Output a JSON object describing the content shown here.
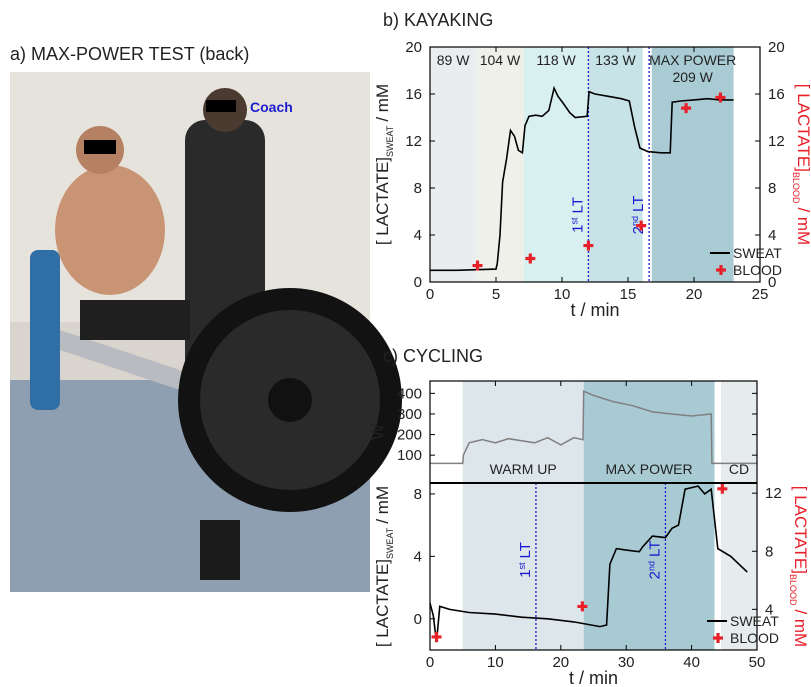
{
  "photo_panel": {
    "title": "a) MAX-POWER TEST (back)",
    "label": "Coach"
  },
  "chart_data": [
    {
      "type": "line",
      "title": "b) KAYAKING",
      "xlabel": "t / min",
      "xlim": [
        0,
        25
      ],
      "xticks": [
        0,
        5,
        10,
        15,
        20,
        25
      ],
      "ylim": [
        0,
        20
      ],
      "yticks": [
        0,
        4,
        8,
        12,
        16,
        20
      ],
      "y2lim": [
        0,
        20
      ],
      "y2ticks": [
        0,
        4,
        8,
        12,
        16,
        20
      ],
      "ylabel": {
        "text": "[ LACTATE]",
        "sub": "SWEAT",
        "unit": "/ mM"
      },
      "y2label": {
        "text": "[ LACTATE]",
        "sub": "BLOOD",
        "unit": "/ mM"
      },
      "regions": [
        {
          "label": "89 W",
          "start": 0,
          "end": 3.5,
          "color": "#e9edf0"
        },
        {
          "label": "104 W",
          "start": 3.5,
          "end": 7.1,
          "color": "#eff0e9"
        },
        {
          "label": "118 W",
          "start": 7.1,
          "end": 12,
          "color": "#d9f0f1"
        },
        {
          "label": "133 W",
          "start": 12,
          "end": 16.1,
          "color": "#c7e3e8"
        },
        {
          "label": "MAX POWER",
          "sublabel": "209 W",
          "start": 16.8,
          "end": 23,
          "color": "#a9ccd4"
        }
      ],
      "thresholds": [
        {
          "x": 12,
          "number": "1",
          "suffix": "st",
          "label": "LT"
        },
        {
          "x": 16.6,
          "number": "2",
          "suffix": "nd",
          "label": "LT"
        }
      ],
      "legend": "lower right",
      "series": [
        {
          "name": "SWEAT",
          "color": "#000000",
          "x": [
            0,
            2,
            5,
            5.1,
            5.3,
            5.5,
            5.8,
            6.1,
            6.4,
            6.7,
            7,
            7.2,
            7.5,
            8,
            8.5,
            9,
            9.4,
            9.7,
            10.1,
            10.6,
            11,
            11.9,
            12.05,
            12.5,
            13.5,
            14.5,
            15.1,
            15.5,
            15.9,
            16.5,
            17.5,
            18.2,
            18.35,
            19,
            20,
            21,
            22,
            23
          ],
          "values": [
            1.0,
            1.0,
            1.1,
            1.6,
            4,
            8.5,
            10.5,
            12.9,
            12.4,
            11.2,
            11.0,
            13.3,
            14.1,
            14.2,
            14.1,
            14.6,
            16.5,
            15.8,
            15.2,
            14.4,
            14.0,
            14.1,
            16.2,
            16.0,
            15.8,
            15.6,
            15.4,
            13.2,
            11.4,
            11.1,
            11.0,
            11.0,
            15.3,
            15.4,
            15.5,
            15.6,
            15.5,
            15.5
          ]
        },
        {
          "name": "BLOOD",
          "color": "#e8202a",
          "axis": "y2",
          "marker": "plus",
          "x": [
            3.6,
            7.6,
            12,
            16,
            19.4,
            22
          ],
          "values": [
            1.4,
            2.0,
            3.1,
            4.8,
            14.8,
            15.7
          ]
        }
      ]
    },
    {
      "type": "line",
      "title": "c) CYCLING",
      "xlabel": "t / min",
      "xlim": [
        0,
        50
      ],
      "xticks": [
        0,
        10,
        20,
        30,
        40,
        50
      ],
      "ylim": [
        -2,
        8.7
      ],
      "yticks": [
        0,
        4,
        8
      ],
      "y2lim": [
        1.2,
        12.7
      ],
      "y2ticks": [
        4,
        8,
        12
      ],
      "ylabel": {
        "text": "[ LACTATE]",
        "sub": "SWEAT",
        "unit": "/ mM"
      },
      "y2label": {
        "text": "[ LACTATE]",
        "sub": "BLOOD",
        "unit": "/ mM"
      },
      "regions": [
        {
          "label": "WARM UP",
          "start": 5,
          "end": 23.5,
          "color": "#dde6ea"
        },
        {
          "label": "MAX POWER",
          "start": 23.5,
          "end": 43.5,
          "color": "#a8cbd3"
        },
        {
          "label": "CD",
          "start": 44.5,
          "end": 50,
          "color": "#e6ebee"
        }
      ],
      "thresholds": [
        {
          "x": 16.2,
          "number": "1",
          "suffix": "st",
          "label": "LT"
        },
        {
          "x": 36,
          "number": "2",
          "suffix": "nd",
          "label": "LT"
        }
      ],
      "power": {
        "ylabel": "W",
        "ylim": [
          -35,
          460
        ],
        "yticks": [
          100,
          200,
          300,
          400
        ],
        "color": "#808080",
        "x": [
          0,
          5,
          5.1,
          6,
          8,
          10,
          12,
          14,
          16,
          18,
          20,
          22,
          23.4,
          23.5,
          25,
          28,
          31,
          34,
          37,
          40,
          43,
          43.1,
          50
        ],
        "values": [
          60,
          60,
          100,
          160,
          175,
          160,
          180,
          170,
          160,
          185,
          150,
          185,
          175,
          410,
          390,
          360,
          340,
          310,
          300,
          290,
          300,
          60,
          60
        ]
      },
      "legend": "lower right",
      "series": [
        {
          "name": "SWEAT",
          "color": "#000000",
          "x": [
            0,
            0.5,
            1,
            1.5,
            3,
            6,
            10,
            14,
            18,
            22,
            26,
            27,
            27.5,
            28.5,
            30,
            32,
            32.5,
            34,
            36,
            37,
            38,
            39,
            41,
            42,
            43,
            44,
            46,
            48.5
          ],
          "values": [
            1.0,
            0.2,
            -1.5,
            0.8,
            0.6,
            0.4,
            0.3,
            0.1,
            0.0,
            -0.2,
            -0.5,
            -0.4,
            3.5,
            4.5,
            4.4,
            4.3,
            4.6,
            5.3,
            5.2,
            5.8,
            6.0,
            8.3,
            8.5,
            8.0,
            8.3,
            4.5,
            4.0,
            3.0
          ]
        },
        {
          "name": "BLOOD",
          "color": "#e8202a",
          "axis": "y2",
          "marker": "plus",
          "x": [
            1,
            23.3,
            44.7
          ],
          "values": [
            2.1,
            4.2,
            12.3
          ]
        }
      ]
    }
  ]
}
